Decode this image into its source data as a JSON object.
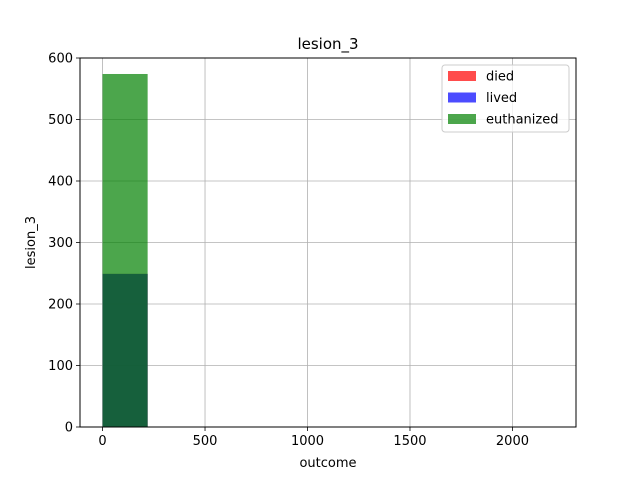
{
  "chart_data": {
    "type": "histogram",
    "title": "lesion_3",
    "xlabel": "outcome",
    "ylabel": "lesion_3",
    "xlim": [
      -110,
      2310
    ],
    "ylim": [
      0,
      600
    ],
    "xticks": [
      0,
      500,
      1000,
      1500,
      2000
    ],
    "yticks": [
      0,
      100,
      200,
      300,
      400,
      500,
      600
    ],
    "grid": true,
    "legend_position": "top-right",
    "bin_edges": [
      0,
      220,
      440,
      660,
      880,
      1100,
      1320,
      1540,
      1760,
      1980,
      2200
    ],
    "series": [
      {
        "name": "died",
        "color": "#ff0000",
        "alpha": 0.7,
        "counts": [
          249,
          0,
          0,
          0,
          0,
          0,
          0,
          0,
          0,
          0
        ]
      },
      {
        "name": "lived",
        "color": "#0000ff",
        "alpha": 0.7,
        "counts": [
          249,
          0,
          0,
          0,
          0,
          0,
          0,
          0,
          0,
          0
        ]
      },
      {
        "name": "euthanized",
        "color": "#008000",
        "alpha": 0.7,
        "counts": [
          574,
          0,
          0,
          0,
          0,
          0,
          0,
          0,
          0,
          0
        ]
      }
    ]
  }
}
